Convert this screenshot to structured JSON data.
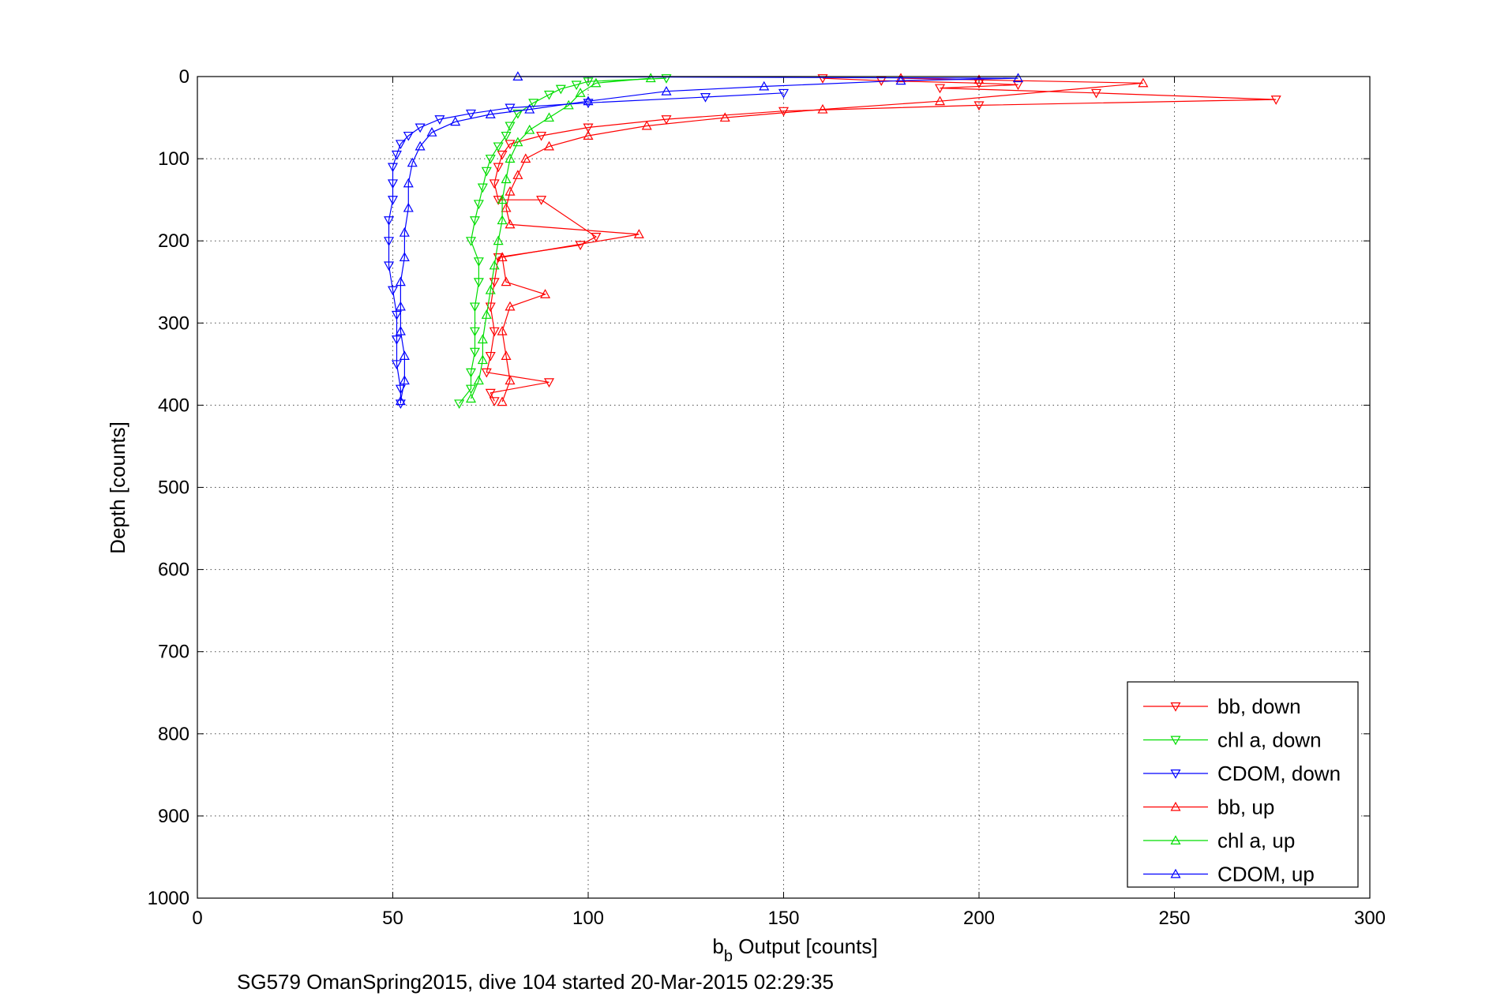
{
  "chart_data": {
    "type": "line",
    "title": "",
    "xlabel": "Output [counts]",
    "xlabel_symbol": "b",
    "xlabel_subscript": "b",
    "ylabel": "Depth [counts]",
    "caption": "SG579 OmanSpring2015, dive 104 started 20-Mar-2015 02:29:35",
    "xlim": [
      0,
      300
    ],
    "ylim": [
      0,
      1000
    ],
    "y_reversed": true,
    "grid": true,
    "legend_position": "bottom-right",
    "x_ticks": [
      "0",
      "50",
      "100",
      "150",
      "200",
      "250",
      "300"
    ],
    "y_ticks": [
      "0",
      "100",
      "200",
      "300",
      "400",
      "500",
      "600",
      "700",
      "800",
      "900",
      "1000"
    ],
    "series": [
      {
        "name": "bb, down",
        "color": "#ff0000",
        "marker": "triangle-down",
        "points": [
          [
            160,
            2
          ],
          [
            175,
            5
          ],
          [
            200,
            8
          ],
          [
            210,
            10
          ],
          [
            190,
            14
          ],
          [
            230,
            20
          ],
          [
            276,
            28
          ],
          [
            200,
            35
          ],
          [
            150,
            42
          ],
          [
            120,
            52
          ],
          [
            100,
            62
          ],
          [
            88,
            72
          ],
          [
            80,
            82
          ],
          [
            78,
            95
          ],
          [
            77,
            110
          ],
          [
            76,
            130
          ],
          [
            77,
            150
          ],
          [
            88,
            150
          ],
          [
            102,
            195
          ],
          [
            98,
            205
          ],
          [
            77,
            220
          ],
          [
            76,
            250
          ],
          [
            75,
            280
          ],
          [
            76,
            310
          ],
          [
            75,
            340
          ],
          [
            74,
            360
          ],
          [
            90,
            372
          ],
          [
            75,
            385
          ],
          [
            76,
            395
          ]
        ]
      },
      {
        "name": "chl a, down",
        "color": "#00dd00",
        "marker": "triangle-down",
        "points": [
          [
            120,
            2
          ],
          [
            100,
            6
          ],
          [
            97,
            10
          ],
          [
            93,
            15
          ],
          [
            90,
            22
          ],
          [
            86,
            32
          ],
          [
            82,
            45
          ],
          [
            80,
            60
          ],
          [
            79,
            72
          ],
          [
            77,
            85
          ],
          [
            75,
            100
          ],
          [
            74,
            115
          ],
          [
            73,
            135
          ],
          [
            72,
            155
          ],
          [
            71,
            175
          ],
          [
            70,
            200
          ],
          [
            72,
            225
          ],
          [
            72,
            250
          ],
          [
            71,
            280
          ],
          [
            71,
            310
          ],
          [
            71,
            335
          ],
          [
            70,
            360
          ],
          [
            70,
            380
          ],
          [
            67,
            398
          ]
        ]
      },
      {
        "name": "CDOM, down",
        "color": "#0000ff",
        "marker": "triangle-down",
        "points": [
          [
            150,
            20
          ],
          [
            130,
            25
          ],
          [
            100,
            32
          ],
          [
            80,
            38
          ],
          [
            70,
            45
          ],
          [
            62,
            52
          ],
          [
            57,
            62
          ],
          [
            54,
            72
          ],
          [
            52,
            82
          ],
          [
            51,
            95
          ],
          [
            50,
            110
          ],
          [
            50,
            130
          ],
          [
            50,
            150
          ],
          [
            49,
            175
          ],
          [
            49,
            200
          ],
          [
            49,
            230
          ],
          [
            50,
            260
          ],
          [
            51,
            290
          ],
          [
            51,
            320
          ],
          [
            51,
            350
          ],
          [
            52,
            380
          ],
          [
            52,
            398
          ]
        ]
      },
      {
        "name": "bb, up",
        "color": "#ff0000",
        "marker": "triangle-up",
        "points": [
          [
            78,
            396
          ],
          [
            80,
            370
          ],
          [
            79,
            340
          ],
          [
            78,
            310
          ],
          [
            80,
            280
          ],
          [
            89,
            265
          ],
          [
            79,
            250
          ],
          [
            78,
            220
          ],
          [
            113,
            192
          ],
          [
            80,
            180
          ],
          [
            79,
            160
          ],
          [
            80,
            140
          ],
          [
            82,
            120
          ],
          [
            84,
            100
          ],
          [
            90,
            85
          ],
          [
            100,
            72
          ],
          [
            115,
            60
          ],
          [
            135,
            50
          ],
          [
            160,
            40
          ],
          [
            190,
            30
          ],
          [
            242,
            8
          ],
          [
            200,
            4
          ],
          [
            180,
            2
          ]
        ]
      },
      {
        "name": "chl a, up",
        "color": "#00dd00",
        "marker": "triangle-up",
        "points": [
          [
            70,
            392
          ],
          [
            72,
            370
          ],
          [
            73,
            345
          ],
          [
            73,
            320
          ],
          [
            74,
            290
          ],
          [
            75,
            260
          ],
          [
            76,
            230
          ],
          [
            77,
            200
          ],
          [
            78,
            175
          ],
          [
            78,
            150
          ],
          [
            79,
            125
          ],
          [
            80,
            100
          ],
          [
            82,
            80
          ],
          [
            85,
            65
          ],
          [
            90,
            50
          ],
          [
            95,
            35
          ],
          [
            98,
            20
          ],
          [
            102,
            8
          ],
          [
            116,
            2
          ]
        ]
      },
      {
        "name": "CDOM, up",
        "color": "#0000ff",
        "marker": "triangle-up",
        "points": [
          [
            52,
            395
          ],
          [
            53,
            370
          ],
          [
            53,
            340
          ],
          [
            52,
            310
          ],
          [
            52,
            280
          ],
          [
            52,
            250
          ],
          [
            53,
            220
          ],
          [
            53,
            190
          ],
          [
            54,
            160
          ],
          [
            54,
            130
          ],
          [
            55,
            105
          ],
          [
            57,
            85
          ],
          [
            60,
            68
          ],
          [
            66,
            55
          ],
          [
            75,
            46
          ],
          [
            85,
            40
          ],
          [
            100,
            30
          ],
          [
            120,
            18
          ],
          [
            145,
            12
          ],
          [
            180,
            5
          ],
          [
            210,
            2
          ],
          [
            82,
            0
          ]
        ]
      }
    ]
  }
}
